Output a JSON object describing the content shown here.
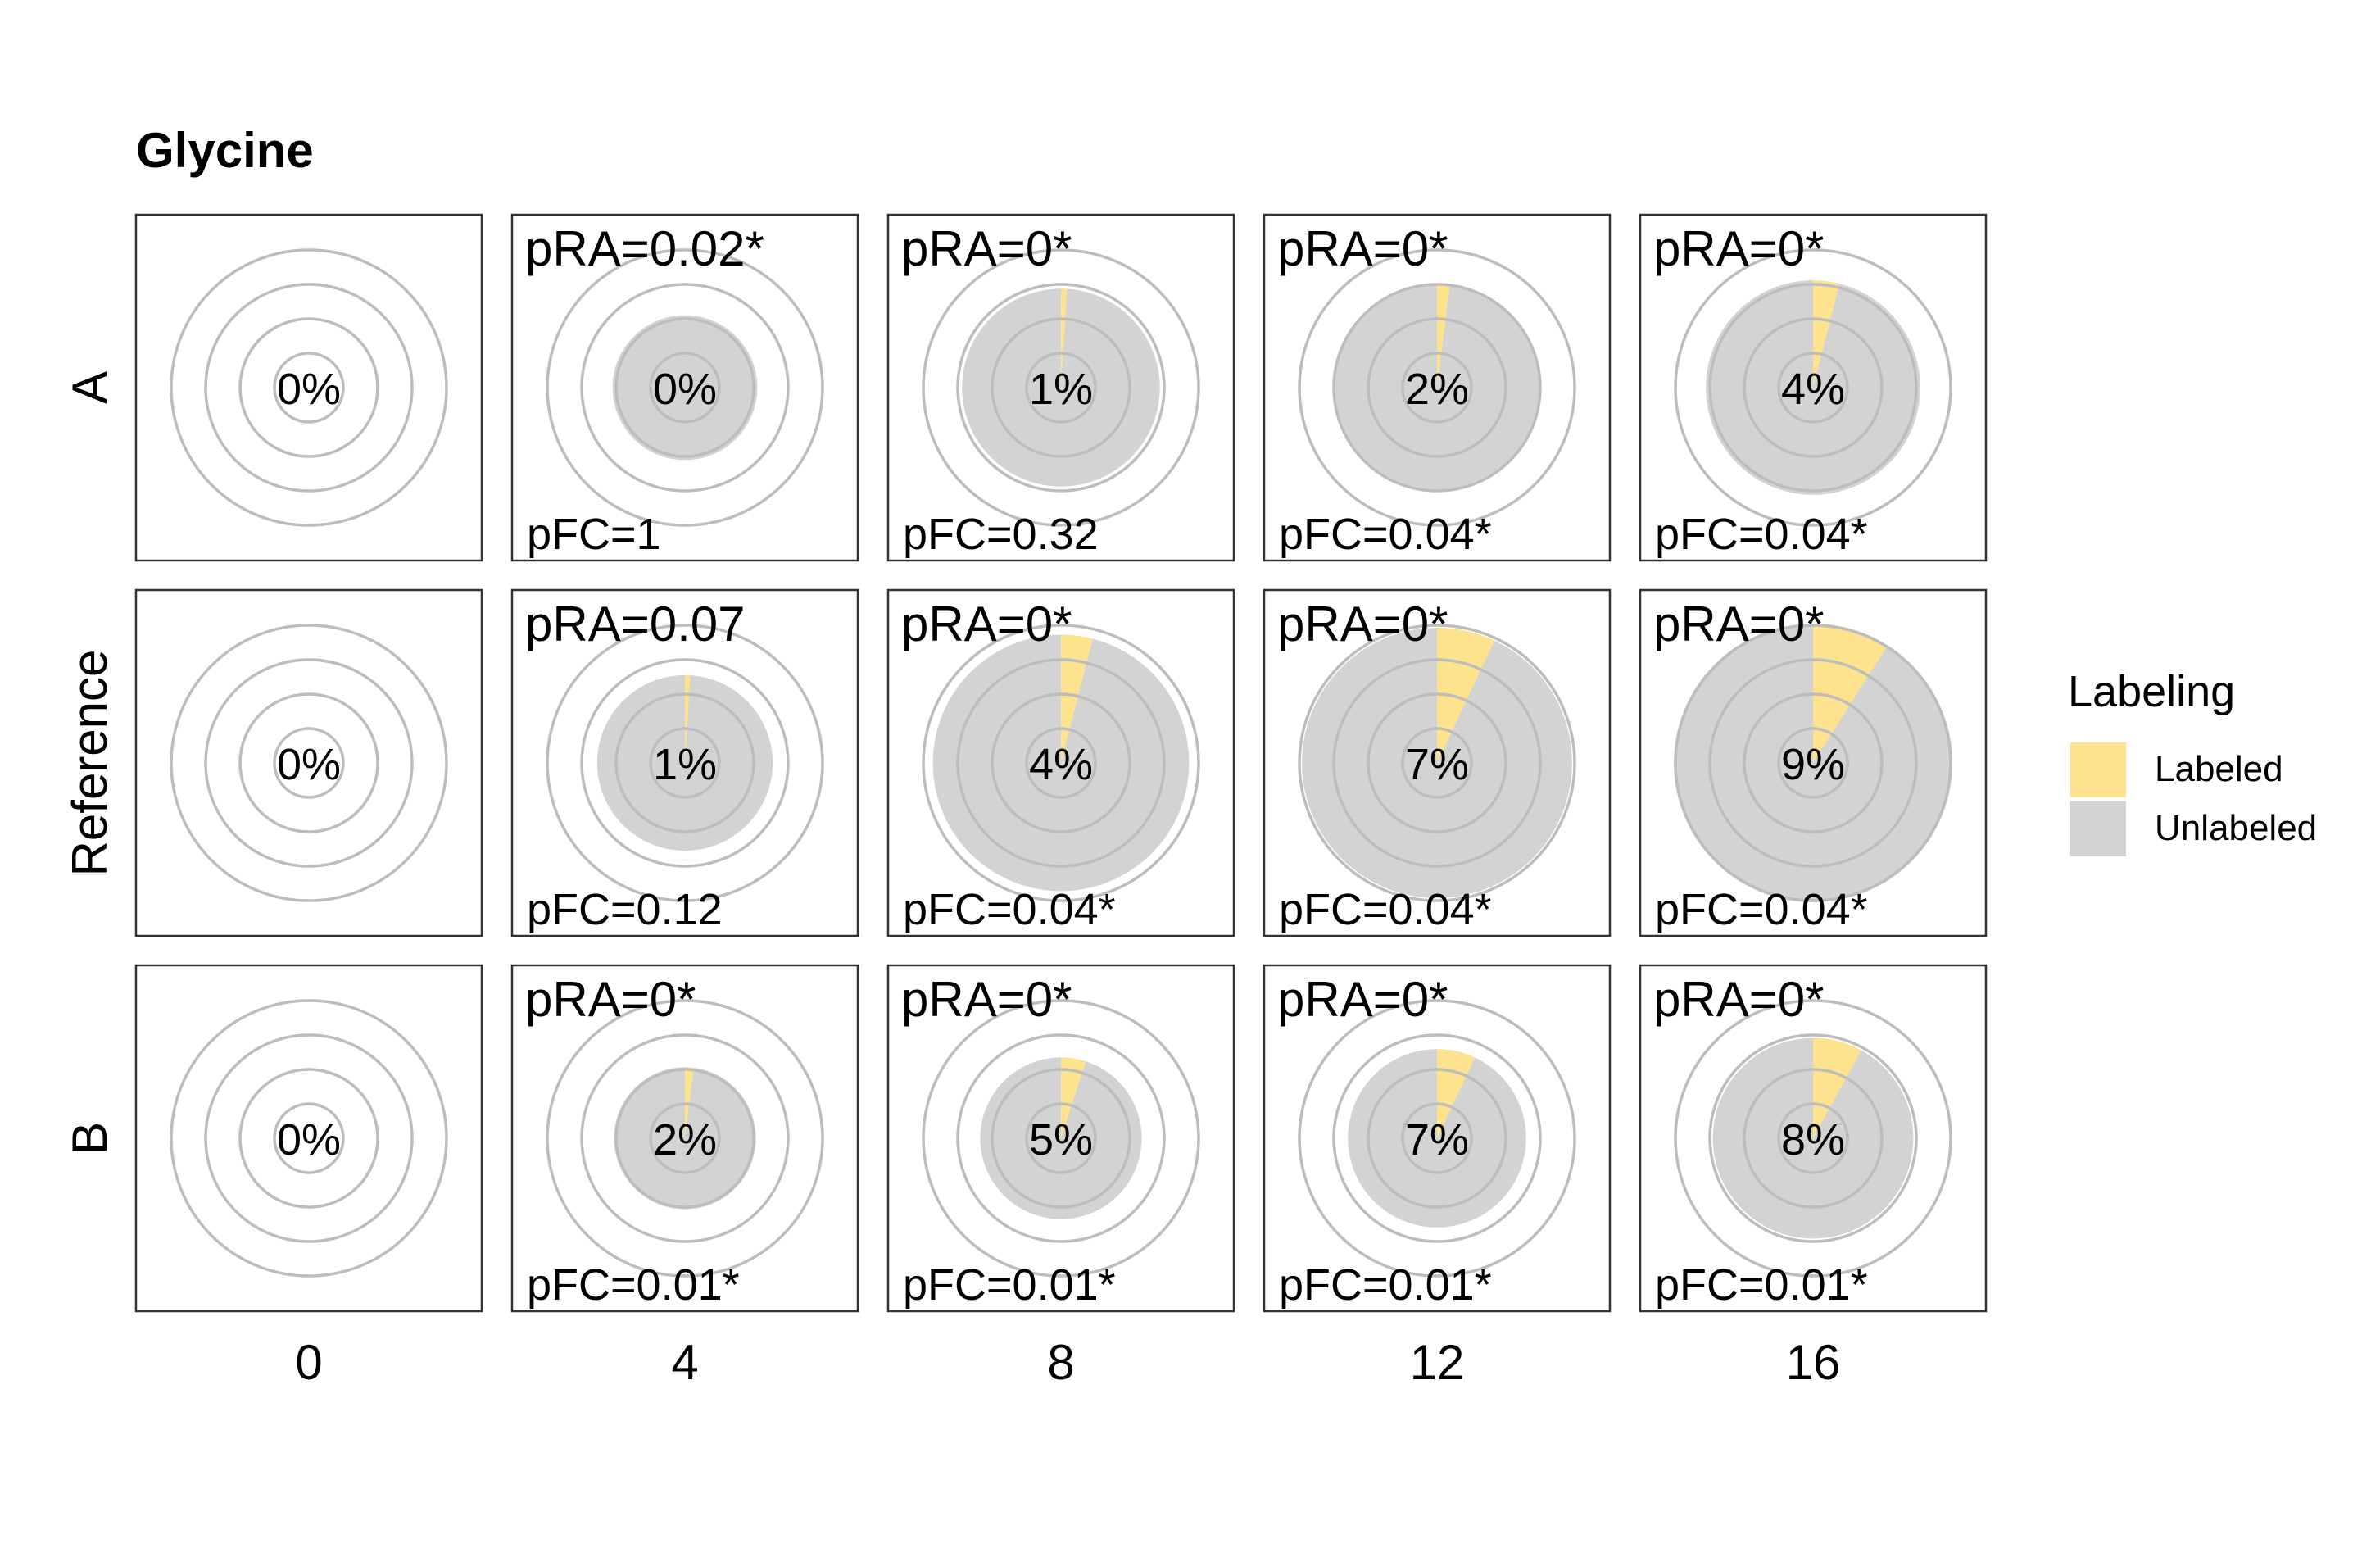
{
  "chart_data": {
    "type": "pie",
    "title": "Glycine",
    "rows": [
      "A",
      "Reference",
      "B"
    ],
    "columns": [
      "0",
      "4",
      "8",
      "12",
      "16"
    ],
    "legend": {
      "title": "Labeling",
      "placement": "right",
      "entries": [
        "Labeled",
        "Unlabeled"
      ]
    },
    "colors": {
      "Labeled": "#FDE38E",
      "Unlabeled": "#D3D3D3"
    },
    "reference_rings": 4,
    "labeled_percent": [
      [
        0,
        0,
        1,
        2,
        4
      ],
      [
        0,
        1,
        4,
        7,
        9
      ],
      [
        0,
        2,
        5,
        7,
        8
      ]
    ],
    "percent_labels": [
      [
        "0%",
        "0%",
        "1%",
        "2%",
        "4%"
      ],
      [
        "0%",
        "1%",
        "4%",
        "7%",
        "9%"
      ],
      [
        "0%",
        "2%",
        "5%",
        "7%",
        "8%"
      ]
    ],
    "relative_pie_size": [
      [
        0,
        0.52,
        0.71,
        0.75,
        0.77
      ],
      [
        0,
        0.63,
        0.92,
        0.97,
        1.0
      ],
      [
        0,
        0.51,
        0.58,
        0.64,
        0.72
      ]
    ],
    "pRA": [
      [
        "",
        "pRA=0.02*",
        "pRA=0*",
        "pRA=0*",
        "pRA=0*"
      ],
      [
        "",
        "pRA=0.07",
        "pRA=0*",
        "pRA=0*",
        "pRA=0*"
      ],
      [
        "",
        "pRA=0*",
        "pRA=0*",
        "pRA=0*",
        "pRA=0*"
      ]
    ],
    "pFC": [
      [
        "",
        "pFC=1",
        "pFC=0.32",
        "pFC=0.04*",
        "pFC=0.04*"
      ],
      [
        "",
        "pFC=0.12",
        "pFC=0.04*",
        "pFC=0.04*",
        "pFC=0.04*"
      ],
      [
        "",
        "pFC=0.01*",
        "pFC=0.01*",
        "pFC=0.01*",
        "pFC=0.01*"
      ]
    ]
  }
}
